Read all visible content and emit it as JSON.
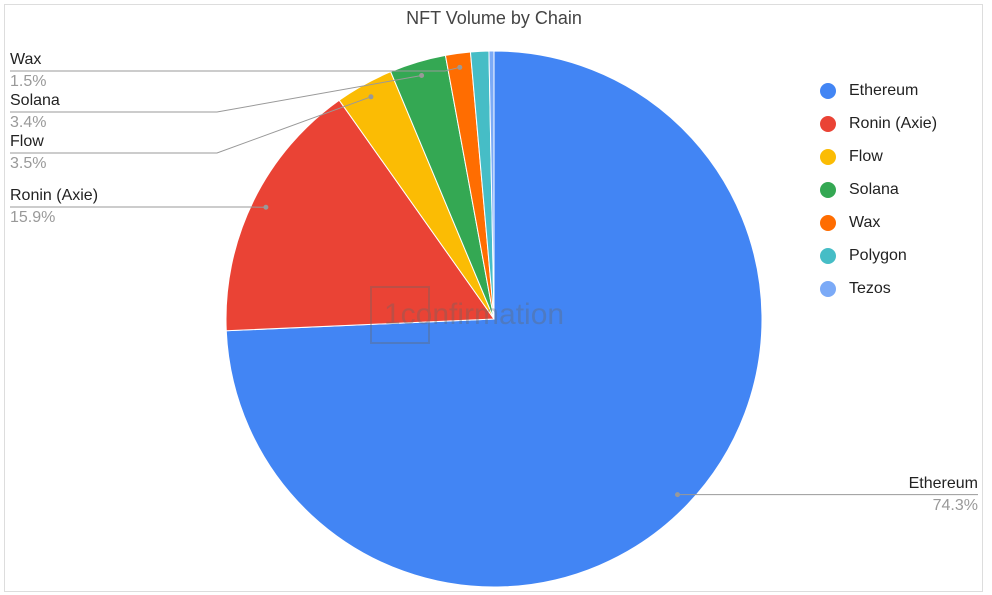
{
  "chart_data": {
    "type": "pie",
    "title": "NFT Volume by Chain",
    "categories": [
      "Ethereum",
      "Ronin (Axie)",
      "Flow",
      "Solana",
      "Wax",
      "Polygon",
      "Tezos"
    ],
    "values": [
      74.3,
      15.9,
      3.5,
      3.4,
      1.5,
      1.1,
      0.3
    ],
    "value_labels": [
      "74.3%",
      "15.9%",
      "3.5%",
      "3.4%",
      "1.5%",
      null,
      null
    ],
    "colors": [
      "#4285f4",
      "#ea4335",
      "#fbbc04",
      "#34a853",
      "#ff6d01",
      "#46bdc6",
      "#7baaf7"
    ],
    "legend": "right",
    "watermark": "1confirmation"
  }
}
